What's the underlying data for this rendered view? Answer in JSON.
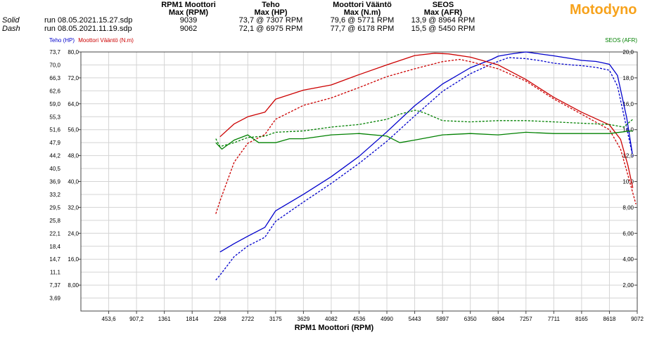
{
  "brand": "Motodyno",
  "header": {
    "columns": [
      {
        "title": "RPM1 Moottori",
        "sub": "Max (RPM)"
      },
      {
        "title": "Teho",
        "sub": "Max (HP)"
      },
      {
        "title": "Moottori Vääntö",
        "sub": "Max (N.m)"
      },
      {
        "title": "SEOS",
        "sub": "Max (AFR)"
      }
    ],
    "runs": [
      {
        "style": "Solid",
        "file": "run 08.05.2021.15.27.sdp",
        "rpm": "9039",
        "hp": "73,7 @ 7307 RPM",
        "nm": "79,6 @ 5771 RPM",
        "afr": "13,9 @ 8964 RPM"
      },
      {
        "style": "Dash",
        "file": "run 08.05.2021.11.19.sdp",
        "rpm": "9062",
        "hp": "72,1 @ 6975 RPM",
        "nm": "77,7 @ 6178 RPM",
        "afr": "15,5 @ 5450 RPM"
      }
    ]
  },
  "chart_data": {
    "type": "line",
    "xlabel": "RPM1 Moottori (RPM)",
    "xlim": [
      0,
      9072
    ],
    "x_ticks": [
      "453,6",
      "907,2",
      "1361",
      "1814",
      "2268",
      "2722",
      "3175",
      "3629",
      "4082",
      "4536",
      "4990",
      "5443",
      "5897",
      "6350",
      "6804",
      "7257",
      "7711",
      "8165",
      "8618",
      "9072"
    ],
    "left_axis_1": {
      "label": "Teho (HP)",
      "color": "#0000cc",
      "ylim": [
        0,
        73.7
      ],
      "ticks": [
        "3,69",
        "7,37",
        "11,1",
        "14,7",
        "18,4",
        "22,1",
        "25,8",
        "29,5",
        "33,2",
        "36,9",
        "40,5",
        "44,2",
        "47,9",
        "51,6",
        "55,3",
        "59,0",
        "62,6",
        "66,3",
        "70,0",
        "73,7"
      ]
    },
    "left_axis_2": {
      "label": "Moottori Vääntö (N.m)",
      "color": "#cc0000",
      "ylim": [
        0,
        80
      ],
      "ticks": [
        "8,00",
        "16,0",
        "24,0",
        "32,0",
        "40,0",
        "48,0",
        "56,0",
        "64,0",
        "72,0",
        "80,0"
      ]
    },
    "right_axis": {
      "label": "SEOS (AFR)",
      "color": "#008000",
      "ylim": [
        0,
        20
      ],
      "ticks": [
        "2,00",
        "4,00",
        "6,00",
        "8,00",
        "10,0",
        "12,0",
        "14,0",
        "16,0",
        "18,0",
        "20,0"
      ]
    },
    "grid": true,
    "series": [
      {
        "name": "Teho",
        "run": "Solid",
        "axis": "hp",
        "color": "#0000cc",
        "dash": false,
        "x": [
          2268,
          2500,
          2722,
          3000,
          3175,
          3629,
          4082,
          4536,
          4990,
          5443,
          5897,
          6350,
          6700,
          6804,
          7000,
          7257,
          7500,
          7711,
          8000,
          8165,
          8400,
          8618,
          8750,
          8900,
          8990
        ],
        "y": [
          16.8,
          19.2,
          21.3,
          23.8,
          28.5,
          33.2,
          38.2,
          44.0,
          51.0,
          58.4,
          64.6,
          69.2,
          71.6,
          72.5,
          73.1,
          73.7,
          73.1,
          72.6,
          71.8,
          71.3,
          71.0,
          70.2,
          67.0,
          55.0,
          45.0
        ]
      },
      {
        "name": "Teho",
        "run": "Dash",
        "axis": "hp",
        "color": "#0000cc",
        "dash": true,
        "x": [
          2200,
          2268,
          2500,
          2722,
          3000,
          3175,
          3629,
          4082,
          4536,
          4990,
          5443,
          5897,
          6350,
          6700,
          6804,
          6975,
          7257,
          7500,
          7711,
          8000,
          8165,
          8400,
          8618,
          8750,
          8900,
          9000
        ],
        "y": [
          8.8,
          10.2,
          15.5,
          18.5,
          21.0,
          25.5,
          31.0,
          36.3,
          42.0,
          48.3,
          55.5,
          62.5,
          67.5,
          70.3,
          71.0,
          72.1,
          71.8,
          71.2,
          70.5,
          70.0,
          69.8,
          69.3,
          68.5,
          64.0,
          52.0,
          44.0
        ]
      },
      {
        "name": "Moottori Vääntö",
        "run": "Solid",
        "axis": "nm",
        "color": "#cc0000",
        "dash": false,
        "x": [
          2268,
          2500,
          2722,
          3000,
          3175,
          3629,
          4082,
          4536,
          4990,
          5443,
          5771,
          6000,
          6350,
          6804,
          7257,
          7711,
          8165,
          8618,
          8800,
          8920,
          9000
        ],
        "y": [
          53.8,
          57.8,
          60.0,
          61.4,
          65.4,
          68.2,
          69.8,
          73.0,
          76.0,
          78.9,
          79.6,
          79.4,
          78.4,
          76.0,
          71.5,
          66.0,
          61.4,
          57.5,
          53.0,
          45.0,
          38.0
        ]
      },
      {
        "name": "Moottori Vääntö",
        "run": "Dash",
        "axis": "nm",
        "color": "#cc0000",
        "dash": true,
        "x": [
          2200,
          2268,
          2500,
          2722,
          3000,
          3175,
          3629,
          4082,
          4536,
          4990,
          5443,
          5897,
          6178,
          6350,
          6804,
          7257,
          7711,
          8165,
          8618,
          8800,
          8920,
          9050
        ],
        "y": [
          30.0,
          34.0,
          46.0,
          51.8,
          54.5,
          59.2,
          63.5,
          65.8,
          69.0,
          72.4,
          74.8,
          77.0,
          77.7,
          77.0,
          74.8,
          71.0,
          65.5,
          60.8,
          56.0,
          50.0,
          42.0,
          33.0
        ]
      },
      {
        "name": "SEOS",
        "run": "Solid",
        "axis": "afr",
        "color": "#008000",
        "dash": false,
        "x": [
          2200,
          2300,
          2500,
          2722,
          2900,
          3175,
          3400,
          3629,
          4082,
          4536,
          4990,
          5200,
          5443,
          5897,
          6350,
          6804,
          7257,
          7711,
          8165,
          8618,
          8964,
          9000
        ],
        "y": [
          13.0,
          12.5,
          13.2,
          13.6,
          13.0,
          13.0,
          13.3,
          13.3,
          13.6,
          13.7,
          13.5,
          13.0,
          13.2,
          13.6,
          13.7,
          13.6,
          13.8,
          13.7,
          13.7,
          13.7,
          13.9,
          13.9
        ]
      },
      {
        "name": "SEOS",
        "run": "Dash",
        "axis": "afr",
        "color": "#008000",
        "dash": true,
        "x": [
          2200,
          2268,
          2500,
          2722,
          3000,
          3175,
          3629,
          4082,
          4536,
          4990,
          5200,
          5450,
          5600,
          5897,
          6350,
          6804,
          7257,
          7711,
          8165,
          8618,
          8850,
          9000
        ],
        "y": [
          13.3,
          12.7,
          13.0,
          13.4,
          13.5,
          13.8,
          13.9,
          14.2,
          14.4,
          14.8,
          15.2,
          15.5,
          15.3,
          14.7,
          14.6,
          14.7,
          14.7,
          14.6,
          14.5,
          14.4,
          14.2,
          14.8
        ]
      }
    ]
  }
}
